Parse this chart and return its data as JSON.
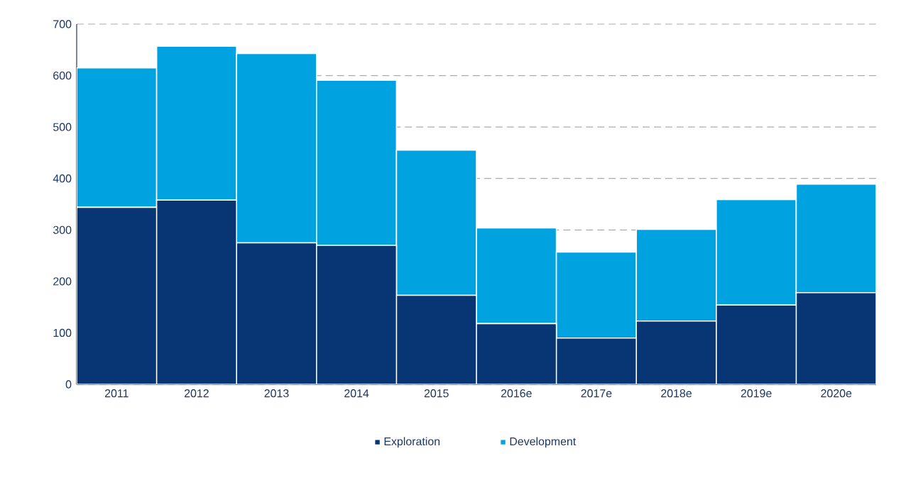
{
  "chart_data": {
    "type": "bar",
    "stacked": true,
    "categories": [
      "2011",
      "2012",
      "2013",
      "2014",
      "2015",
      "2016e",
      "2017e",
      "2018e",
      "2019e",
      "2020e"
    ],
    "series": [
      {
        "name": "Exploration",
        "color": "#083574",
        "values": [
          344,
          358,
          275,
          270,
          173,
          118,
          90,
          123,
          154,
          178
        ]
      },
      {
        "name": "Development",
        "color": "#00a3e0",
        "values": [
          271,
          299,
          368,
          321,
          282,
          186,
          167,
          178,
          205,
          211
        ]
      }
    ],
    "ylim": [
      0,
      700
    ],
    "yticks": [
      0,
      100,
      200,
      300,
      400,
      500,
      600,
      700
    ],
    "grid": "y",
    "legend": "bottom"
  }
}
